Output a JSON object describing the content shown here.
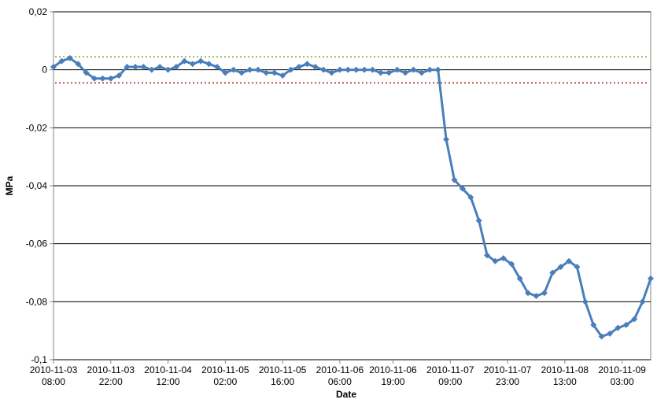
{
  "chart_data": {
    "type": "line",
    "xlabel": "Date",
    "ylabel": "MPa",
    "x": [
      "2010-11-03 08:00",
      "2010-11-03 10:00",
      "2010-11-03 12:00",
      "2010-11-03 14:00",
      "2010-11-03 16:00",
      "2010-11-03 18:00",
      "2010-11-03 20:00",
      "2010-11-03 22:00",
      "2010-11-04 00:00",
      "2010-11-04 02:00",
      "2010-11-04 04:00",
      "2010-11-04 06:00",
      "2010-11-04 08:00",
      "2010-11-04 10:00",
      "2010-11-04 12:00",
      "2010-11-04 14:00",
      "2010-11-04 16:00",
      "2010-11-04 18:00",
      "2010-11-04 20:00",
      "2010-11-04 22:00",
      "2010-11-05 00:00",
      "2010-11-05 02:00",
      "2010-11-05 04:00",
      "2010-11-05 06:00",
      "2010-11-05 08:00",
      "2010-11-05 10:00",
      "2010-11-05 12:00",
      "2010-11-05 14:00",
      "2010-11-05 16:00",
      "2010-11-05 18:00",
      "2010-11-05 20:00",
      "2010-11-05 22:00",
      "2010-11-06 00:00",
      "2010-11-06 02:00",
      "2010-11-06 04:00",
      "2010-11-06 06:00",
      "2010-11-06 08:00",
      "2010-11-06 10:00",
      "2010-11-06 12:00",
      "2010-11-06 14:00",
      "2010-11-06 16:00",
      "2010-11-06 18:00",
      "2010-11-06 20:00",
      "2010-11-06 22:00",
      "2010-11-07 00:00",
      "2010-11-07 02:00",
      "2010-11-07 04:00",
      "2010-11-07 06:00",
      "2010-11-07 08:00",
      "2010-11-07 10:00",
      "2010-11-07 12:00",
      "2010-11-07 14:00",
      "2010-11-07 16:00",
      "2010-11-07 18:00",
      "2010-11-07 20:00",
      "2010-11-07 22:00",
      "2010-11-08 00:00",
      "2010-11-08 02:00",
      "2010-11-08 04:00",
      "2010-11-08 06:00",
      "2010-11-08 08:00",
      "2010-11-08 10:00",
      "2010-11-08 12:00",
      "2010-11-08 14:00",
      "2010-11-08 16:00",
      "2010-11-08 18:00",
      "2010-11-08 20:00",
      "2010-11-08 22:00",
      "2010-11-09 00:00",
      "2010-11-09 02:00",
      "2010-11-09 04:00",
      "2010-11-09 06:00",
      "2010-11-09 08:00",
      "2010-11-09 10:00"
    ],
    "series": [
      {
        "color": "#4a7ebb",
        "values": [
          0.001,
          0.003,
          0.004,
          0.002,
          -0.001,
          -0.003,
          -0.003,
          -0.003,
          -0.002,
          0.001,
          0.001,
          0.001,
          0.0,
          0.001,
          0.0,
          0.001,
          0.003,
          0.002,
          0.003,
          0.002,
          0.001,
          -0.001,
          0.0,
          -0.001,
          0.0,
          0.0,
          -0.001,
          -0.001,
          -0.002,
          0.0,
          0.001,
          0.002,
          0.001,
          0.0,
          -0.001,
          0.0,
          0.0,
          0.0,
          0.0,
          0.0,
          -0.001,
          -0.001,
          0.0,
          -0.001,
          0.0,
          -0.001,
          0.0,
          0.0,
          -0.024,
          -0.038,
          -0.041,
          -0.044,
          -0.052,
          -0.064,
          -0.066,
          -0.065,
          -0.067,
          -0.072,
          -0.077,
          -0.078,
          -0.077,
          -0.07,
          -0.068,
          -0.066,
          -0.068,
          -0.08,
          -0.088,
          -0.092,
          -0.091,
          -0.089,
          -0.088,
          -0.086,
          -0.08,
          -0.072
        ]
      }
    ],
    "reference_lines": [
      {
        "value": 0.0045,
        "color": "#9bbb59"
      },
      {
        "value": -0.0045,
        "color": "#c0504d"
      }
    ],
    "xlim": [
      "2010-11-03 08:00",
      "2010-11-09 10:00"
    ],
    "xticks": [
      "2010-11-03 08:00",
      "2010-11-03 22:00",
      "2010-11-04 12:00",
      "2010-11-05 02:00",
      "2010-11-05 16:00",
      "2010-11-06 06:00",
      "2010-11-06 19:00",
      "2010-11-07 09:00",
      "2010-11-07 23:00",
      "2010-11-08 13:00",
      "2010-11-09 03:00"
    ],
    "ylim": [
      -0.1,
      0.02
    ],
    "yticks": [
      {
        "value": 0.02,
        "label": "0,02"
      },
      0,
      {
        "value": -0.02,
        "label": "-0,02"
      },
      {
        "value": -0.04,
        "label": "-0,04"
      },
      {
        "value": -0.06,
        "label": "-0,06"
      },
      {
        "value": -0.08,
        "label": "-0,08"
      },
      {
        "value": -0.1,
        "label": "-0,1"
      }
    ],
    "grid": true
  }
}
